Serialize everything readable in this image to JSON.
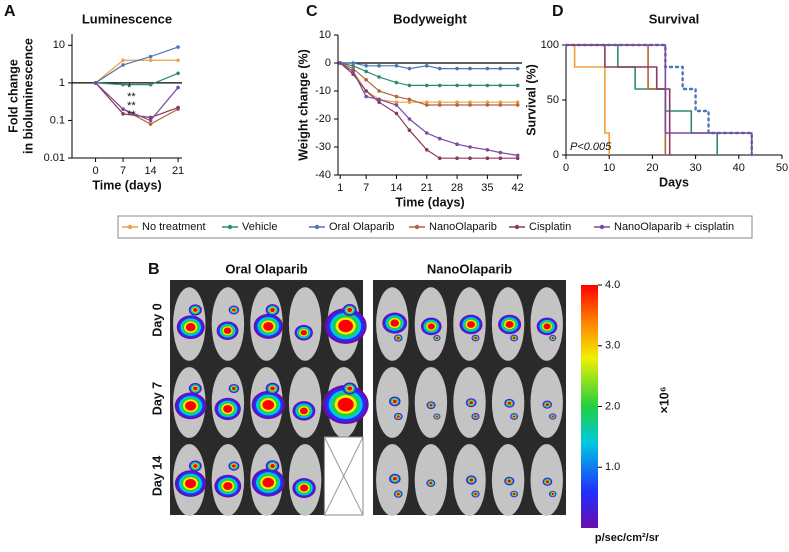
{
  "panel_labels": [
    "A",
    "B",
    "C",
    "D"
  ],
  "legend": {
    "names": [
      "No treatment",
      "Vehicle",
      "Oral Olaparib",
      "NanoOlaparib",
      "Cisplatin",
      "NanoOlaparib + cisplatin"
    ],
    "colors": [
      "#f0a040",
      "#2e8b6e",
      "#4a78b0",
      "#b0643c",
      "#8b3a5a",
      "#7a4aa0"
    ]
  },
  "chart_data": [
    {
      "type": "line",
      "title": "Luminescence",
      "xlabel": "Time (days)",
      "ylabel": [
        "Fold change",
        "in bioluminescence"
      ],
      "log_y": true,
      "xlim": [
        -6,
        22
      ],
      "ylim": [
        0.01,
        20
      ],
      "xticks": [
        0,
        7,
        14,
        21
      ],
      "yticks": [
        0.01,
        0.1,
        1,
        10
      ],
      "hline": 1,
      "x": [
        0,
        7,
        14,
        21
      ],
      "series": [
        {
          "values": [
            1,
            4,
            4,
            4
          ]
        },
        {
          "values": [
            1,
            0.9,
            0.9,
            1.8
          ]
        },
        {
          "values": [
            1,
            3,
            5,
            9
          ]
        },
        {
          "values": [
            1,
            0.2,
            0.08,
            0.2
          ]
        },
        {
          "values": [
            1,
            0.15,
            0.12,
            0.22
          ]
        },
        {
          "values": [
            1,
            0.2,
            0.1,
            0.75
          ]
        }
      ],
      "annotations": [
        "*",
        "**",
        "**",
        "**"
      ]
    },
    {
      "type": "line",
      "title": "Bodyweight",
      "xlabel": "Time (days)",
      "ylabel": [
        "Weight change (%)"
      ],
      "xlim": [
        0.5,
        43
      ],
      "ylim": [
        -40,
        10
      ],
      "xticks": [
        1,
        7,
        14,
        21,
        28,
        35,
        42
      ],
      "yticks": [
        -40,
        -30,
        -20,
        -10,
        0,
        10
      ],
      "hline": 0,
      "x": [
        1,
        4,
        7,
        10,
        14,
        17,
        21,
        24,
        28,
        31,
        35,
        38,
        42
      ],
      "series": [
        {
          "values": [
            0,
            -3,
            -10,
            -13,
            -14,
            -14,
            -14,
            -14,
            -14,
            -14,
            -14,
            -14,
            -14
          ]
        },
        {
          "values": [
            0,
            -1,
            -3,
            -5,
            -7,
            -8,
            -8,
            -8,
            -8,
            -8,
            -8,
            -8,
            -8
          ]
        },
        {
          "values": [
            0,
            0,
            -1,
            -1,
            -1,
            -2,
            -1,
            -2,
            -2,
            -2,
            -2,
            -2,
            -2
          ]
        },
        {
          "values": [
            0,
            -2,
            -6,
            -10,
            -12,
            -13,
            -15,
            -15,
            -15,
            -15,
            -15,
            -15,
            -15
          ]
        },
        {
          "values": [
            0,
            -4,
            -10,
            -14,
            -18,
            -24,
            -31,
            -34,
            -34,
            -34,
            -34,
            -34,
            -34
          ]
        },
        {
          "values": [
            0,
            -3,
            -12,
            -13,
            -15,
            -20,
            -25,
            -27,
            -29,
            -30,
            -31,
            -32,
            -33
          ]
        }
      ]
    },
    {
      "type": "step",
      "title": "Survival",
      "xlabel": "Days",
      "ylabel": [
        "Survival (%)"
      ],
      "xlim": [
        0,
        50
      ],
      "ylim": [
        0,
        100
      ],
      "xticks": [
        0,
        10,
        20,
        30,
        40,
        50
      ],
      "yticks": [
        0,
        50,
        100
      ],
      "annotations": [
        "P<0.005"
      ],
      "series": [
        {
          "x": [
            0,
            2,
            9,
            10
          ],
          "values": [
            100,
            80,
            20,
            0
          ]
        },
        {
          "x": [
            0,
            12,
            16,
            23,
            29,
            35
          ],
          "values": [
            100,
            80,
            60,
            40,
            20,
            0
          ]
        },
        {
          "x": [
            0,
            23,
            27,
            30,
            33,
            43
          ],
          "values": [
            100,
            80,
            60,
            40,
            20,
            0
          ],
          "dashed": true
        },
        {
          "x": [
            0,
            19,
            23
          ],
          "values": [
            100,
            60,
            0
          ]
        },
        {
          "x": [
            0,
            9,
            21,
            24
          ],
          "values": [
            100,
            80,
            60,
            0
          ]
        },
        {
          "x": [
            0,
            23,
            43
          ],
          "values": [
            100,
            20,
            0
          ]
        }
      ]
    }
  ],
  "panel_b": {
    "columns": [
      "Oral Olaparib",
      "NanoOlaparib"
    ],
    "rows": [
      "Day 0",
      "Day 7",
      "Day 14"
    ],
    "colorbar": {
      "lim": [
        0,
        4
      ],
      "ticks": [
        {
          "value": 1,
          "label": "1.0"
        },
        {
          "value": 2,
          "label": "2.0"
        },
        {
          "value": 3,
          "label": "3.0"
        },
        {
          "value": 4,
          "label": "4.0"
        }
      ],
      "multiplier": "×10⁶",
      "unit": "p/sec/cm²/sr"
    }
  }
}
